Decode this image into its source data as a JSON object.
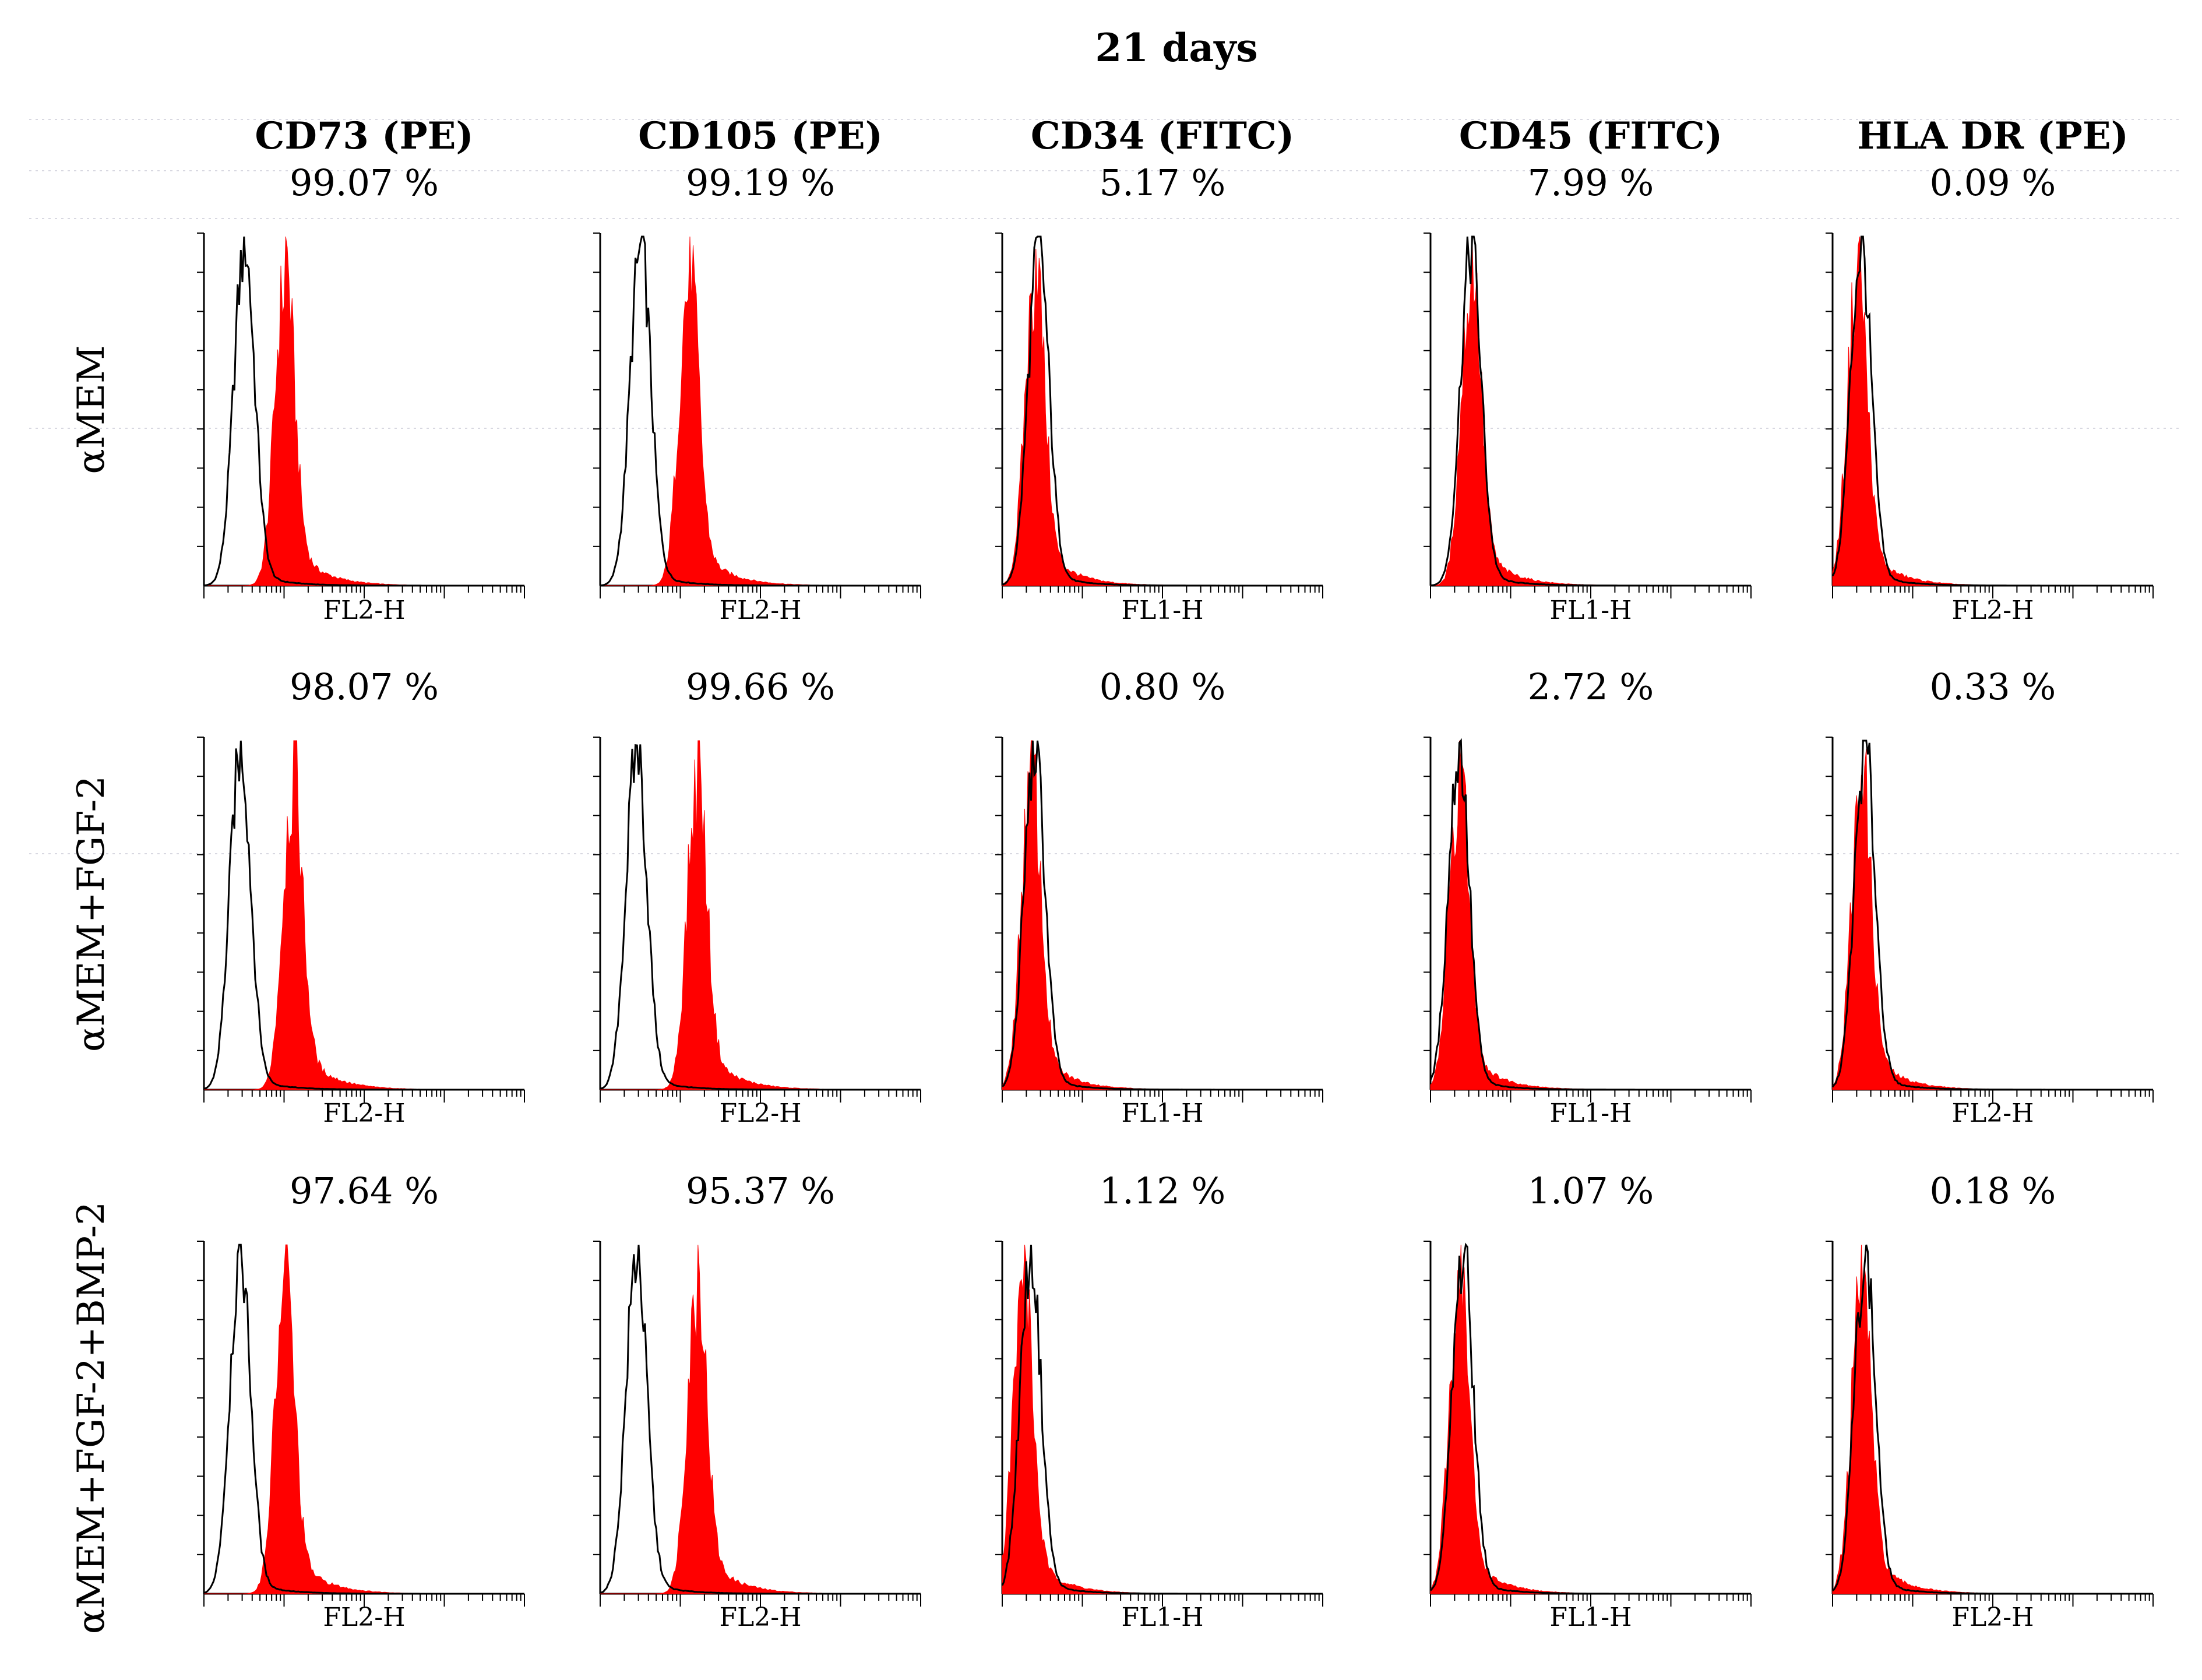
{
  "chart_data": {
    "type": "histogram_grid",
    "title": "21 days",
    "columns": [
      {
        "marker": "CD73 (PE)",
        "channel": "FL2-H"
      },
      {
        "marker": "CD105 (PE)",
        "channel": "FL2-H"
      },
      {
        "marker": "CD34 (FITC)",
        "channel": "FL1-H"
      },
      {
        "marker": "CD45 (FITC)",
        "channel": "FL1-H"
      },
      {
        "marker": "HLA DR (PE)",
        "channel": "FL2-H"
      }
    ],
    "rows": [
      {
        "condition": "αMEM",
        "percentages": [
          "99.07 %",
          "99.19 %",
          "5.17 %",
          "7.99 %",
          "0.09 %"
        ]
      },
      {
        "condition": "αMEM+FGF-2",
        "percentages": [
          "98.07 %",
          "99.66 %",
          "0.80 %",
          "2.72 %",
          "0.33 %"
        ]
      },
      {
        "condition": "αMEM+FGF-2+BMP-2",
        "percentages": [
          "97.64 %",
          "95.37 %",
          "1.12 %",
          "1.07 %",
          "0.18 %"
        ]
      }
    ],
    "x_scale": "log",
    "x_decades": 4,
    "series": [
      {
        "name": "isotype control",
        "style": "outline",
        "color": "#000000"
      },
      {
        "name": "stained sample",
        "style": "filled",
        "color": "#ff0000"
      }
    ],
    "peak_positions_decades": [
      [
        {
          "control": 0.5,
          "sample": 1.0
        },
        {
          "control": 0.5,
          "sample": 1.1
        },
        {
          "control": 0.45,
          "sample": 0.4
        },
        {
          "control": 0.5,
          "sample": 0.5
        },
        {
          "control": 0.35,
          "sample": 0.3
        }
      ],
      [
        {
          "control": 0.45,
          "sample": 1.1
        },
        {
          "control": 0.45,
          "sample": 1.2
        },
        {
          "control": 0.4,
          "sample": 0.35
        },
        {
          "control": 0.35,
          "sample": 0.35
        },
        {
          "control": 0.4,
          "sample": 0.35
        }
      ],
      [
        {
          "control": 0.45,
          "sample": 1.0
        },
        {
          "control": 0.45,
          "sample": 1.2
        },
        {
          "control": 0.35,
          "sample": 0.25
        },
        {
          "control": 0.4,
          "sample": 0.35
        },
        {
          "control": 0.4,
          "sample": 0.35
        }
      ]
    ]
  }
}
